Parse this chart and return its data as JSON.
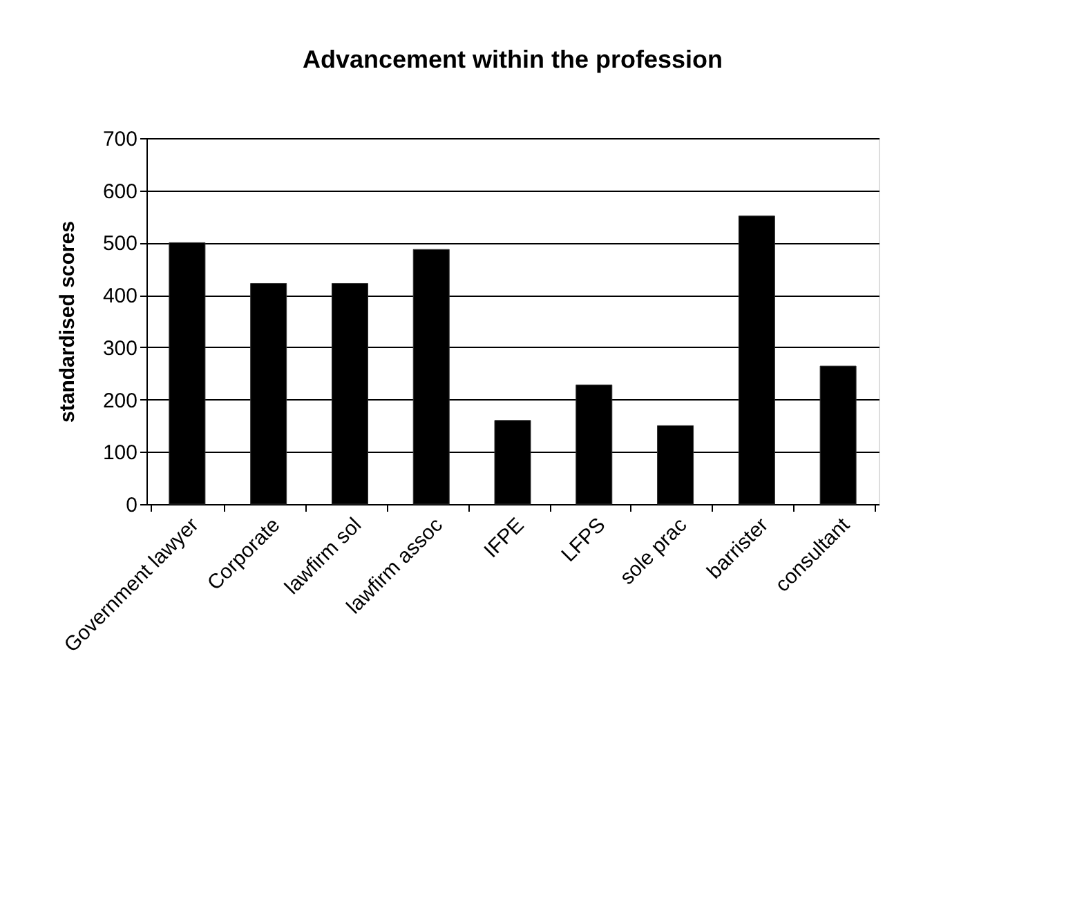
{
  "chart_data": {
    "type": "bar",
    "title": "Advancement within the profession",
    "ylabel": "standardised scores",
    "categories": [
      "Government lawyer",
      "Corporate",
      "lawfirm sol",
      "lawfirm assoc",
      "IFPE",
      "LFPS",
      "sole prac",
      "barrister",
      "consultant"
    ],
    "values": [
      500,
      422,
      422,
      487,
      160,
      228,
      150,
      551,
      264
    ],
    "color": "#000000",
    "ylim": [
      0,
      700
    ],
    "yticks": [
      0,
      100,
      200,
      300,
      400,
      500,
      600,
      700
    ],
    "grid": "y"
  }
}
